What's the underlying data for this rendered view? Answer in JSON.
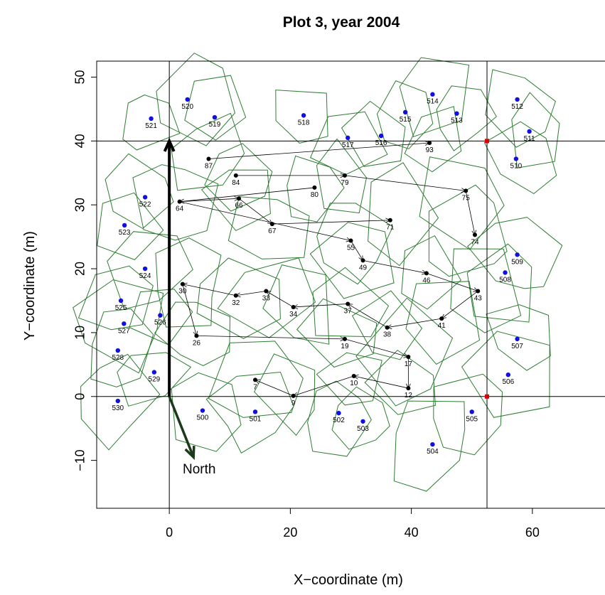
{
  "chart_data": {
    "type": "scatter",
    "title": "Plot 3, year 2004",
    "xlabel": "X−coordinate (m)",
    "ylabel": "Y−coordinate (m)",
    "xlim": [
      -12,
      72
    ],
    "ylim": [
      -17.5,
      52.5
    ],
    "xticks": [
      0,
      20,
      40,
      60
    ],
    "yticks": [
      -10,
      0,
      10,
      20,
      30,
      40,
      50
    ],
    "grid": false,
    "reference_lines": {
      "x": [
        0,
        52.5
      ],
      "y": [
        0,
        40
      ]
    },
    "corner_markers": [
      [
        52.5,
        40
      ],
      [
        52.5,
        0
      ]
    ],
    "north_arrow": {
      "label": "North",
      "from": [
        0,
        0
      ],
      "to": [
        4,
        -9.5
      ]
    },
    "y_axis_arrow": {
      "from": [
        0,
        0
      ],
      "to": [
        0,
        40
      ]
    },
    "colors": {
      "polygon": "#2e7d32",
      "border_point": "#1010e0",
      "interior_point": "#000000",
      "corner_marker": "#dd0000",
      "arrow_north": "#1a3a1a"
    },
    "series": [
      {
        "name": "",
        "color": "#1010e0",
        "points": [
          {
            "id": "500",
            "x": 5.5,
            "y": -2.2
          },
          {
            "id": "501",
            "x": 14.2,
            "y": -2.4
          },
          {
            "id": "502",
            "x": 28,
            "y": -2.6
          },
          {
            "id": "503",
            "x": 32,
            "y": -3.9
          },
          {
            "id": "504",
            "x": 43.5,
            "y": -7.5
          },
          {
            "id": "505",
            "x": 50,
            "y": -2.4
          },
          {
            "id": "506",
            "x": 56,
            "y": 3.4
          },
          {
            "id": "507",
            "x": 57.5,
            "y": 9
          },
          {
            "id": "508",
            "x": 55.5,
            "y": 19.4
          },
          {
            "id": "509",
            "x": 57.5,
            "y": 22.2
          },
          {
            "id": "510",
            "x": 57.3,
            "y": 37.2
          },
          {
            "id": "511",
            "x": 59.5,
            "y": 41.5
          },
          {
            "id": "512",
            "x": 57.5,
            "y": 46.5
          },
          {
            "id": "513",
            "x": 47.5,
            "y": 44.3
          },
          {
            "id": "514",
            "x": 43.5,
            "y": 47.3
          },
          {
            "id": "515",
            "x": 39,
            "y": 44.5
          },
          {
            "id": "516",
            "x": 35,
            "y": 40.8
          },
          {
            "id": "517",
            "x": 29.5,
            "y": 40.5
          },
          {
            "id": "518",
            "x": 22.2,
            "y": 44
          },
          {
            "id": "519",
            "x": 7.5,
            "y": 43.7
          },
          {
            "id": "520",
            "x": 3,
            "y": 46.5
          },
          {
            "id": "521",
            "x": -3,
            "y": 43.5
          },
          {
            "id": "522",
            "x": -4,
            "y": 31.2
          },
          {
            "id": "523",
            "x": -7.4,
            "y": 26.8
          },
          {
            "id": "524",
            "x": -4,
            "y": 20
          },
          {
            "id": "525",
            "x": -8,
            "y": 15
          },
          {
            "id": "526",
            "x": -1.5,
            "y": 12.7
          },
          {
            "id": "527",
            "x": -7.5,
            "y": 11.4
          },
          {
            "id": "528",
            "x": -8.5,
            "y": 7.2
          },
          {
            "id": "529",
            "x": -2.5,
            "y": 3.8
          },
          {
            "id": "530",
            "x": -8.5,
            "y": -0.7
          }
        ]
      },
      {
        "name": "",
        "color": "#000000",
        "points": [
          {
            "id": "7",
            "x": 14.2,
            "y": 2.6
          },
          {
            "id": "9",
            "x": 20.5,
            "y": 0.1
          },
          {
            "id": "10",
            "x": 30.5,
            "y": 3.2
          },
          {
            "id": "12",
            "x": 39.5,
            "y": 1.3
          },
          {
            "id": "17",
            "x": 39.5,
            "y": 6.2
          },
          {
            "id": "19",
            "x": 29,
            "y": 9
          },
          {
            "id": "26",
            "x": 4.5,
            "y": 9.5
          },
          {
            "id": "30",
            "x": 2.2,
            "y": 17.6
          },
          {
            "id": "32",
            "x": 11,
            "y": 15.8
          },
          {
            "id": "33",
            "x": 16,
            "y": 16.5
          },
          {
            "id": "34",
            "x": 20.5,
            "y": 14
          },
          {
            "id": "37",
            "x": 29.5,
            "y": 14.5
          },
          {
            "id": "38",
            "x": 36,
            "y": 10.8
          },
          {
            "id": "41",
            "x": 45,
            "y": 12.2
          },
          {
            "id": "43",
            "x": 51,
            "y": 16.5
          },
          {
            "id": "46",
            "x": 42.5,
            "y": 19.3
          },
          {
            "id": "49",
            "x": 32,
            "y": 21.3
          },
          {
            "id": "55",
            "x": 30,
            "y": 24.4
          },
          {
            "id": "64",
            "x": 1.7,
            "y": 30.5
          },
          {
            "id": "66",
            "x": 11.5,
            "y": 31
          },
          {
            "id": "67",
            "x": 17,
            "y": 27
          },
          {
            "id": "71",
            "x": 36.5,
            "y": 27.6
          },
          {
            "id": "74",
            "x": 50.5,
            "y": 25.3
          },
          {
            "id": "75",
            "x": 49,
            "y": 32.2
          },
          {
            "id": "79",
            "x": 29,
            "y": 34.6
          },
          {
            "id": "80",
            "x": 24,
            "y": 32.7
          },
          {
            "id": "84",
            "x": 11,
            "y": 34.6
          },
          {
            "id": "87",
            "x": 6.5,
            "y": 37.2
          },
          {
            "id": "93",
            "x": 43,
            "y": 39.7
          }
        ]
      }
    ],
    "arrows": [
      [
        "87",
        "93"
      ],
      [
        "84",
        "79"
      ],
      [
        "79",
        "75"
      ],
      [
        "75",
        "74"
      ],
      [
        "80",
        "64"
      ],
      [
        "64",
        "66"
      ],
      [
        "66",
        "67"
      ],
      [
        "67",
        "71"
      ],
      [
        "64",
        "55"
      ],
      [
        "55",
        "49"
      ],
      [
        "49",
        "46"
      ],
      [
        "46",
        "43"
      ],
      [
        "43",
        "41"
      ],
      [
        "41",
        "38"
      ],
      [
        "38",
        "37"
      ],
      [
        "37",
        "34"
      ],
      [
        "34",
        "33"
      ],
      [
        "33",
        "32"
      ],
      [
        "32",
        "30"
      ],
      [
        "30",
        "26"
      ],
      [
        "26",
        "19"
      ],
      [
        "19",
        "17"
      ],
      [
        "17",
        "12"
      ],
      [
        "12",
        "10"
      ],
      [
        "10",
        "9"
      ],
      [
        "9",
        "7"
      ]
    ]
  }
}
